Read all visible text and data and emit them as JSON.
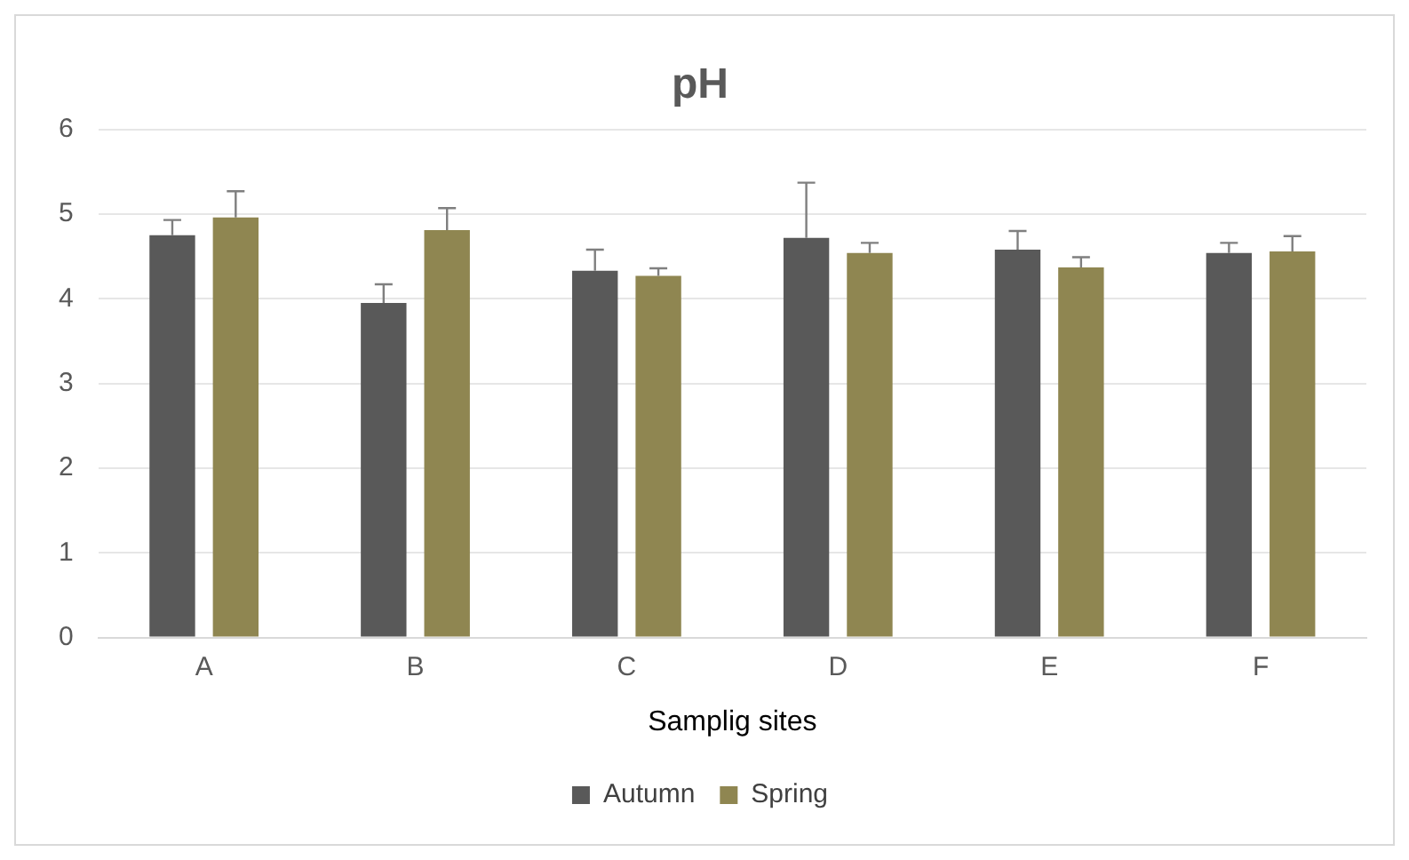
{
  "chart_data": {
    "type": "bar",
    "title": "pH",
    "xlabel": "Samplig sites",
    "categories": [
      "A",
      "B",
      "C",
      "D",
      "E",
      "F"
    ],
    "series": [
      {
        "name": "Autumn",
        "color": "#595959",
        "values": [
          4.75,
          3.95,
          4.33,
          4.72,
          4.58,
          4.54
        ],
        "errors": [
          0.18,
          0.22,
          0.25,
          0.65,
          0.22,
          0.12
        ]
      },
      {
        "name": "Spring",
        "color": "#8f8651",
        "values": [
          4.96,
          4.81,
          4.27,
          4.54,
          4.37,
          4.56
        ],
        "errors": [
          0.31,
          0.26,
          0.09,
          0.12,
          0.12,
          0.18
        ]
      }
    ],
    "ylim": [
      0,
      6
    ],
    "yticks": [
      0,
      1,
      2,
      3,
      4,
      5,
      6
    ],
    "grid": "y",
    "legend": "bottom"
  }
}
